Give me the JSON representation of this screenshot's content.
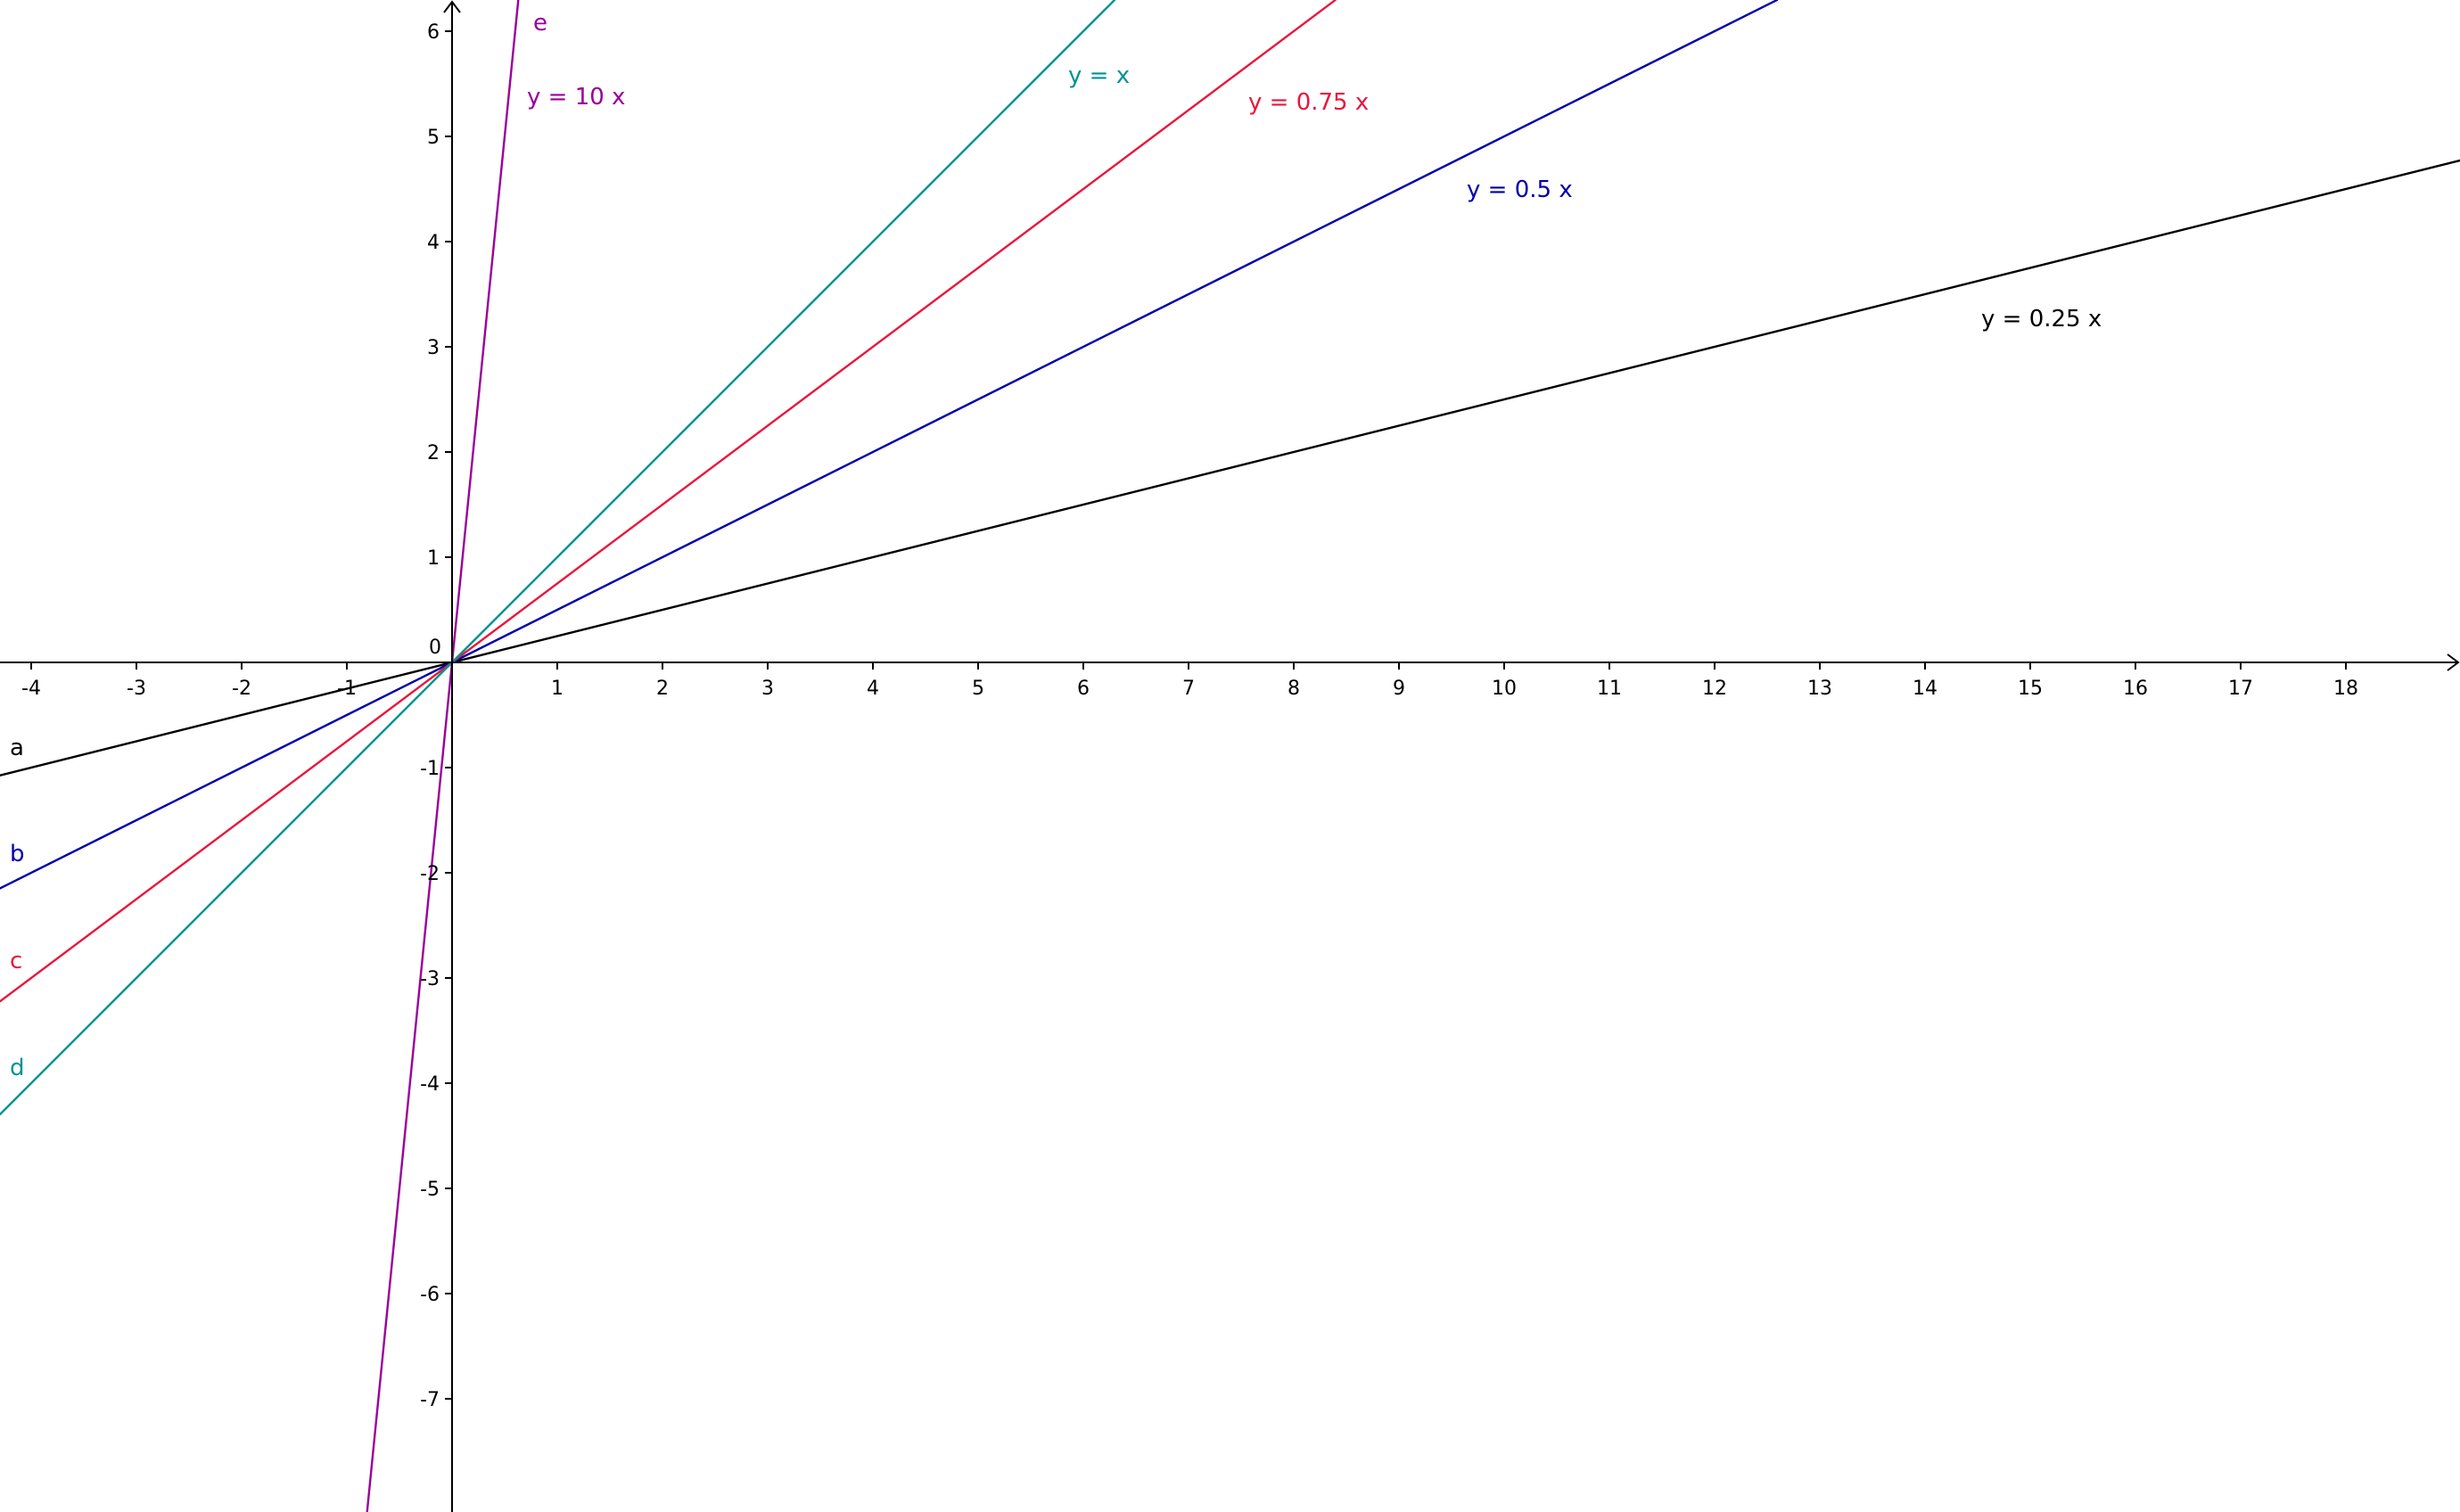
{
  "chart_data": {
    "type": "line",
    "title": "",
    "xlabel": "",
    "ylabel": "",
    "xlim": [
      -4.3,
      19.1
    ],
    "ylim": [
      -8.1,
      6.3
    ],
    "grid": false,
    "origin_label": "0",
    "x_ticks": [
      "-4",
      "-3",
      "-2",
      "-1",
      "1",
      "2",
      "3",
      "4",
      "5",
      "6",
      "7",
      "8",
      "9",
      "10",
      "11",
      "12",
      "13",
      "14",
      "15",
      "16",
      "17",
      "18"
    ],
    "y_ticks": [
      "-7",
      "-6",
      "-5",
      "-4",
      "-3",
      "-2",
      "-1",
      "1",
      "2",
      "3",
      "4",
      "5",
      "6"
    ],
    "series": [
      {
        "name": "a",
        "equation": "y = 0.25 x",
        "slope": 0.25,
        "color": "#000000"
      },
      {
        "name": "b",
        "equation": "y = 0.5 x",
        "slope": 0.5,
        "color": "#0000aa"
      },
      {
        "name": "c",
        "equation": "y = 0.75 x",
        "slope": 0.75,
        "color": "#e8173b"
      },
      {
        "name": "d",
        "equation": "y = x",
        "slope": 1,
        "color": "#009393"
      },
      {
        "name": "e",
        "equation": "y = 10 x",
        "slope": 10,
        "color": "#990099"
      }
    ]
  }
}
